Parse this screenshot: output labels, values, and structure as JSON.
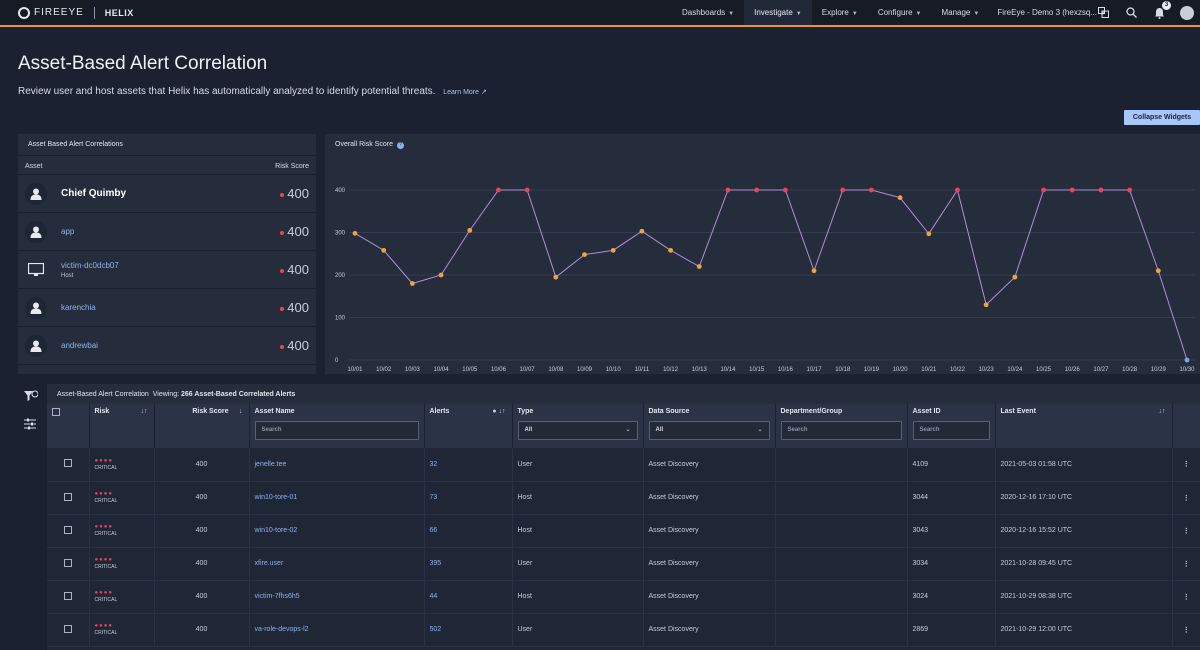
{
  "brand": {
    "logo": "FIREEYE",
    "product": "HELIX"
  },
  "nav": {
    "items": [
      {
        "label": "Dashboards"
      },
      {
        "label": "Investigate"
      },
      {
        "label": "Explore"
      },
      {
        "label": "Configure"
      },
      {
        "label": "Manage"
      }
    ],
    "tenant": "FireEye - Demo 3 (hexzsq...",
    "notifications_count": "3"
  },
  "page": {
    "title": "Asset-Based Alert Correlation",
    "subtitle": "Review user and host assets that Helix has automatically analyzed to identify potential threats.",
    "learn_more": "Learn More",
    "collapse_widgets": "Collapse Widgets"
  },
  "left_widget": {
    "title": "Asset Based Alert Correlations",
    "col_asset": "Asset",
    "col_score": "Risk Score",
    "rows": [
      {
        "name": "Chief Quimby",
        "sub": "",
        "score": "400",
        "icon": "user-icon"
      },
      {
        "name": "app",
        "sub": "",
        "score": "400",
        "icon": "user-icon"
      },
      {
        "name": "victim-dc0dcb07",
        "sub": "Host",
        "score": "400",
        "icon": "monitor-icon"
      },
      {
        "name": "karenchia",
        "sub": "",
        "score": "400",
        "icon": "user-icon"
      },
      {
        "name": "andrewbai",
        "sub": "",
        "score": "400",
        "icon": "user-icon"
      }
    ]
  },
  "chart_data": {
    "type": "line",
    "title": "Overall Risk Score",
    "categories": [
      "10/01",
      "10/02",
      "10/03",
      "10/04",
      "10/05",
      "10/06",
      "10/07",
      "10/08",
      "10/09",
      "10/10",
      "10/11",
      "10/12",
      "10/13",
      "10/14",
      "10/15",
      "10/16",
      "10/17",
      "10/18",
      "10/19",
      "10/20",
      "10/21",
      "10/22",
      "10/23",
      "10/24",
      "10/25",
      "10/26",
      "10/27",
      "10/28",
      "10/29",
      "10/30"
    ],
    "values": [
      298,
      258,
      180,
      200,
      305,
      400,
      400,
      195,
      248,
      258,
      303,
      258,
      220,
      400,
      400,
      400,
      210,
      400,
      400,
      382,
      297,
      400,
      130,
      195,
      400,
      400,
      400,
      400,
      210,
      0
    ],
    "yticks": [
      "0",
      "100",
      "200",
      "300",
      "400"
    ],
    "ylim": [
      0,
      400
    ],
    "grid": true,
    "colors": {
      "high": "#e8445f",
      "medium": "#f1a33b",
      "low": "#7ea1e8",
      "line": "#b08fd0"
    }
  },
  "table": {
    "title": "Asset-Based Alert Correlation",
    "viewing_label": "Viewing:",
    "viewing_value": "266 Asset-Based Correlated Alerts",
    "headers": {
      "risk": "Risk",
      "risk_score": "Risk Score",
      "asset_name": "Asset Name",
      "alerts": "Alerts",
      "type": "Type",
      "data_source": "Data Source",
      "department": "Department/Group",
      "asset_id": "Asset ID",
      "last_event": "Last Event"
    },
    "filters": {
      "asset_name_placeholder": "Search",
      "type_value": "All",
      "data_source_value": "All",
      "department_placeholder": "Search",
      "asset_id_placeholder": "Search"
    },
    "rows": [
      {
        "risk_label": "CRITICAL",
        "score": "400",
        "name": "jenelle.tee",
        "alerts": "32",
        "type": "User",
        "source": "Asset Discovery",
        "dept": "",
        "id": "4109",
        "last": "2021-05-03 01:58 UTC"
      },
      {
        "risk_label": "CRITICAL",
        "score": "400",
        "name": "win10-tore-01",
        "alerts": "73",
        "type": "Host",
        "source": "Asset Discovery",
        "dept": "",
        "id": "3044",
        "last": "2020-12-16 17:10 UTC"
      },
      {
        "risk_label": "CRITICAL",
        "score": "400",
        "name": "win10-tore-02",
        "alerts": "66",
        "type": "Host",
        "source": "Asset Discovery",
        "dept": "",
        "id": "3043",
        "last": "2020-12-16 15:52 UTC"
      },
      {
        "risk_label": "CRITICAL",
        "score": "400",
        "name": "xfire.user",
        "alerts": "395",
        "type": "User",
        "source": "Asset Discovery",
        "dept": "",
        "id": "3034",
        "last": "2021-10-28 09:45 UTC"
      },
      {
        "risk_label": "CRITICAL",
        "score": "400",
        "name": "victim-7fhs6h5",
        "alerts": "44",
        "type": "Host",
        "source": "Asset Discovery",
        "dept": "",
        "id": "3024",
        "last": "2021-10-29 08:38 UTC"
      },
      {
        "risk_label": "CRITICAL",
        "score": "400",
        "name": "va-role-devops-l2",
        "alerts": "502",
        "type": "User",
        "source": "Asset Discovery",
        "dept": "",
        "id": "2869",
        "last": "2021-10-29 12:00 UTC"
      }
    ]
  }
}
